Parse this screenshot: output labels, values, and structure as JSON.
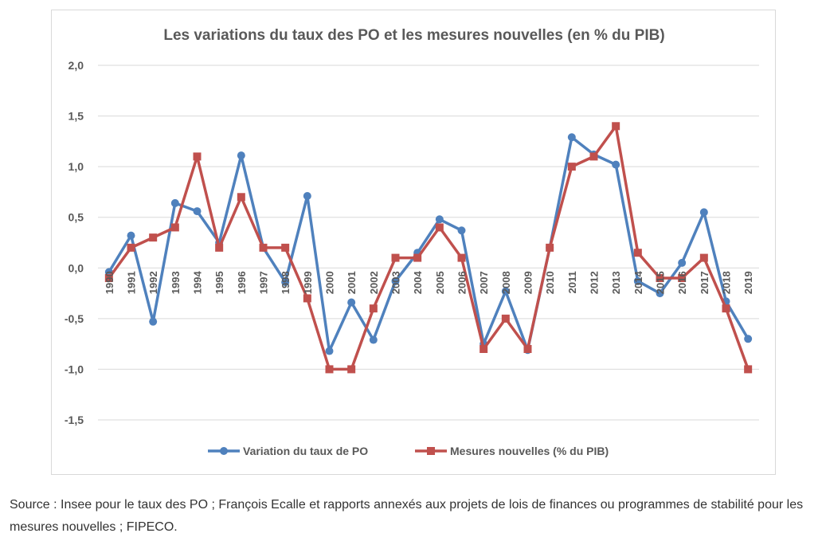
{
  "chart_data": {
    "type": "line",
    "title": "Les variations du taux des PO et les mesures nouvelles (en % du PIB)",
    "xlabel": "",
    "ylabel": "",
    "ylim": [
      -1.5,
      2.0
    ],
    "yticks": [
      2.0,
      1.5,
      1.0,
      0.5,
      0.0,
      -0.5,
      -1.0,
      -1.5
    ],
    "ytick_labels": [
      "2,0",
      "1,5",
      "1,0",
      "0,5",
      "0,0",
      "-0,5",
      "-1,0",
      "-1,5"
    ],
    "grid": true,
    "legend_position": "bottom",
    "categories": [
      "1990",
      "1991",
      "1992",
      "1993",
      "1994",
      "1995",
      "1996",
      "1997",
      "1998",
      "1999",
      "2000",
      "2001",
      "2002",
      "2003",
      "2004",
      "2005",
      "2006",
      "2007",
      "2008",
      "2009",
      "2010",
      "2011",
      "2012",
      "2013",
      "2014",
      "2015",
      "2016",
      "2017",
      "2018",
      "2019"
    ],
    "series": [
      {
        "name": "Variation du taux de PO",
        "color": "#4f81bd",
        "marker": "circle",
        "values": [
          -0.04,
          0.32,
          -0.53,
          0.64,
          0.56,
          0.25,
          1.11,
          0.2,
          -0.14,
          0.71,
          -0.82,
          -0.34,
          -0.71,
          -0.13,
          0.15,
          0.48,
          0.37,
          -0.75,
          -0.23,
          -0.81,
          0.2,
          1.29,
          1.12,
          1.02,
          -0.13,
          -0.25,
          0.05,
          0.55,
          -0.33,
          -0.7
        ]
      },
      {
        "name": "Mesures nouvelles (% du PIB)",
        "color": "#c0504d",
        "marker": "square",
        "values": [
          -0.1,
          0.2,
          0.3,
          0.4,
          1.1,
          0.2,
          0.7,
          0.2,
          0.2,
          -0.3,
          -1.0,
          -1.0,
          -0.4,
          0.1,
          0.1,
          0.4,
          0.1,
          -0.8,
          -0.5,
          -0.8,
          0.2,
          1.0,
          1.1,
          1.4,
          0.15,
          -0.1,
          -0.1,
          0.1,
          -0.4,
          -1.0
        ]
      }
    ]
  },
  "source_text": "Source : Insee pour le taux des PO ; François Ecalle et rapports annexés aux projets de lois de finances ou programmes de stabilité pour les mesures nouvelles ; FIPECO."
}
